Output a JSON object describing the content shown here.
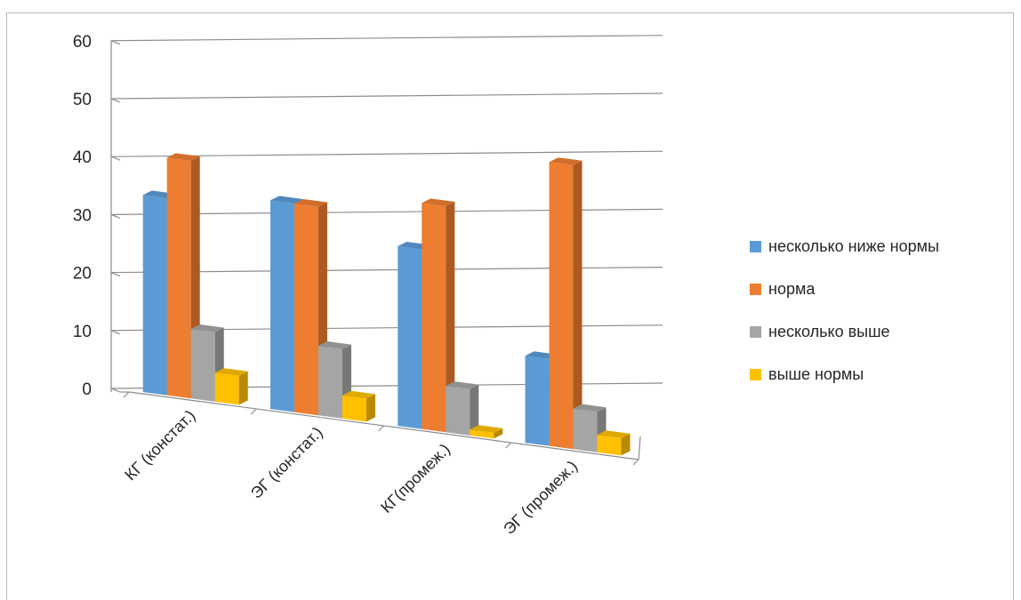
{
  "chart_data": {
    "type": "bar",
    "style": "3d-clustered-column",
    "categories": [
      "КГ (констат.)",
      "ЭГ (констат.)",
      "КГ(промеж.)",
      "ЭГ (промеж.)"
    ],
    "series": [
      {
        "name": "несколько ниже нормы",
        "color": "#5b9bd5",
        "values": [
          34,
          36,
          31,
          15
        ]
      },
      {
        "name": "норма",
        "color": "#ed7d31",
        "values": [
          41,
          36,
          39,
          49
        ]
      },
      {
        "name": "несколько выше",
        "color": "#a5a5a5",
        "values": [
          12,
          12,
          8,
          7
        ]
      },
      {
        "name": "выше нормы",
        "color": "#ffc000",
        "values": [
          5,
          4,
          1,
          3
        ]
      }
    ],
    "yticks": [
      0,
      10,
      20,
      30,
      40,
      50,
      60
    ],
    "ylim": [
      0,
      60
    ],
    "title": "",
    "xlabel": "",
    "ylabel": "",
    "grid": true,
    "legend_position": "right"
  }
}
